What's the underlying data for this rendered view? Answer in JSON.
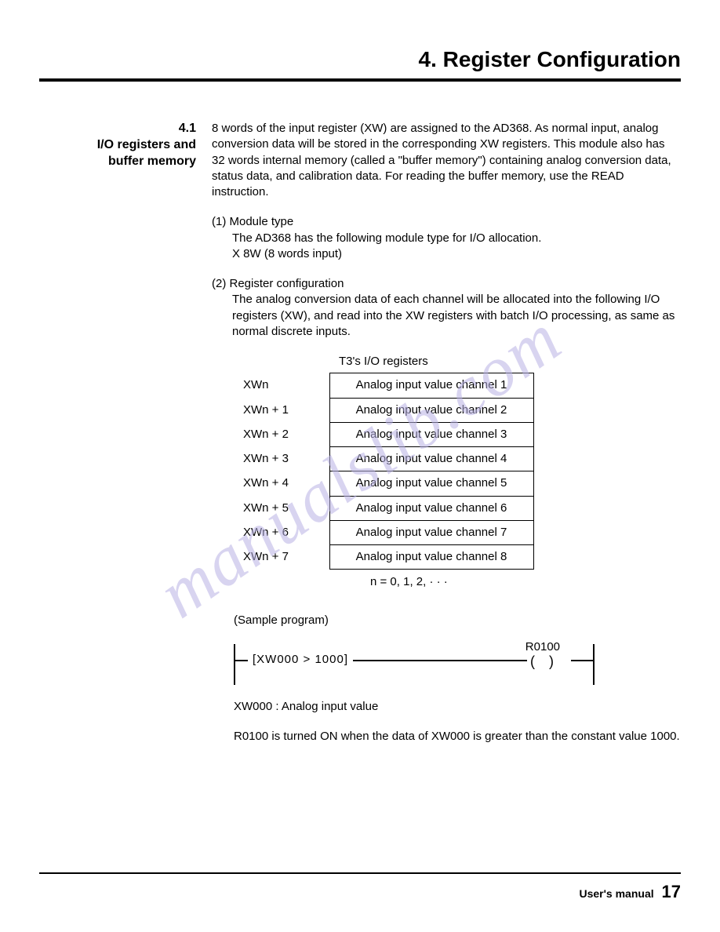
{
  "chapter_title": "4.  Register Configuration",
  "section": {
    "number": "4.1",
    "title_line1": "I/O registers and",
    "title_line2": "buffer memory"
  },
  "body": {
    "intro": "8 words of the input register (XW) are assigned to the AD368. As normal input, analog conversion data will be stored in the corresponding XW registers. This module also has 32 words internal memory (called a \"buffer memory\") containing analog conversion data, status data, and calibration data. For reading the buffer memory, use the READ instruction.",
    "item1_head": "(1) Module type",
    "item1_line1": "The AD368 has the following module type for I/O allocation.",
    "item1_line2": "X 8W (8 words input)",
    "item2_head": "(2) Register configuration",
    "item2_body": "The analog conversion data of each channel will be allocated into the following I/O registers (XW), and read into the XW registers with batch I/O processing, as same as normal discrete inputs."
  },
  "register_table": {
    "title": "T3's I/O registers",
    "rows": [
      {
        "label": "XWn",
        "value": "Analog input value channel 1"
      },
      {
        "label": "XWn + 1",
        "value": "Analog input value channel 2"
      },
      {
        "label": "XWn + 2",
        "value": "Analog input value channel 3"
      },
      {
        "label": "XWn + 3",
        "value": "Analog input value channel 4"
      },
      {
        "label": "XWn + 4",
        "value": "Analog input value channel 5"
      },
      {
        "label": "XWn + 5",
        "value": "Analog input value channel 6"
      },
      {
        "label": "XWn + 6",
        "value": "Analog input value channel 7"
      },
      {
        "label": "XWn + 7",
        "value": "Analog input value channel 8"
      }
    ],
    "note": "n = 0, 1, 2,  · · ·"
  },
  "sample": {
    "title": "(Sample program)",
    "compare_box": "[XW000  >  1000]",
    "coil_label": "R0100",
    "coil_symbol": "()",
    "note_xw": "XW000 : Analog input value",
    "note_r": "R0100 is turned ON when the data of XW000 is greater than the constant value 1000."
  },
  "footer": {
    "label": "User's manual",
    "page": "17"
  },
  "watermark": "manualslib.com",
  "colors": {
    "text": "#000000",
    "background": "#ffffff",
    "watermark": "#b9b2e4",
    "rule": "#000000"
  },
  "typography": {
    "chapter_title_pt": 28,
    "body_pt": 15,
    "section_heading_pt": 16,
    "footer_page_pt": 22
  }
}
